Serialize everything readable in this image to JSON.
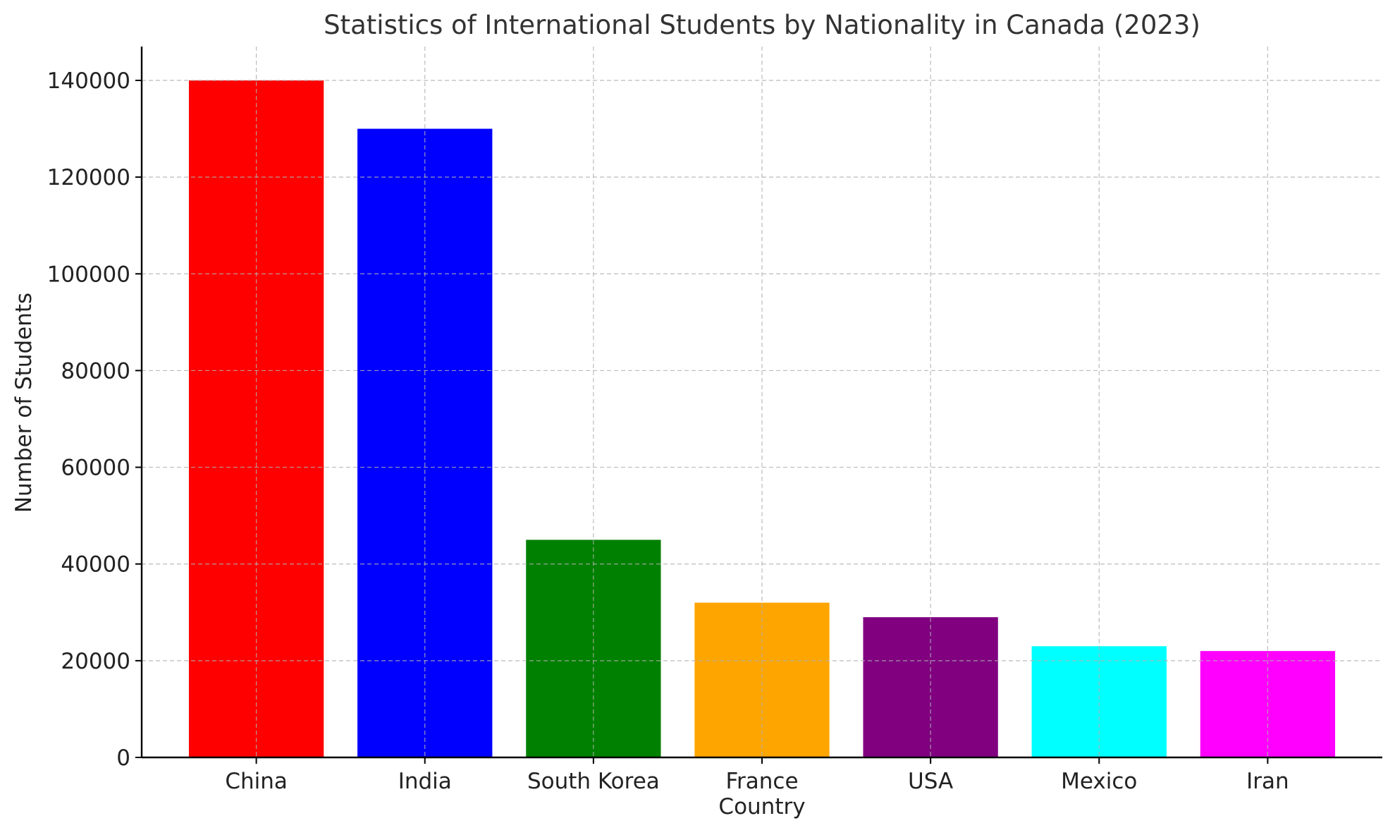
{
  "chart_data": {
    "type": "bar",
    "title": "Statistics of International Students by Nationality in Canada (2023)",
    "xlabel": "Country",
    "ylabel": "Number of Students",
    "categories": [
      "China",
      "India",
      "South Korea",
      "France",
      "USA",
      "Mexico",
      "Iran"
    ],
    "values": [
      140000,
      130000,
      45000,
      32000,
      29000,
      23000,
      22000
    ],
    "colors": [
      "#ff0000",
      "#0000ff",
      "#008000",
      "#ffa500",
      "#800080",
      "#00ffff",
      "#ff00ff"
    ],
    "ylim": [
      0,
      147000
    ],
    "yticks": [
      0,
      20000,
      40000,
      60000,
      80000,
      100000,
      120000,
      140000
    ],
    "ytick_labels": [
      "0",
      "20000",
      "40000",
      "60000",
      "80000",
      "100000",
      "120000",
      "140000"
    ],
    "grid": true,
    "grid_style": "dashed",
    "legend": false
  }
}
